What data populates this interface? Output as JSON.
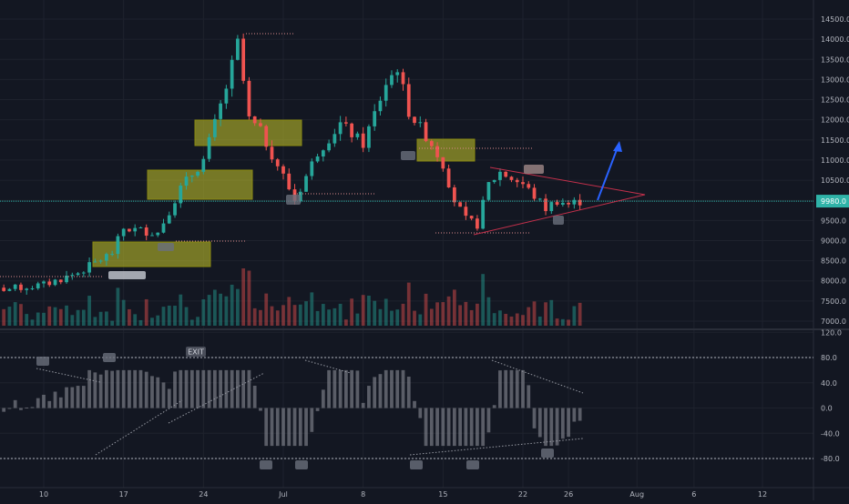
{
  "colors": {
    "background": "#131722",
    "grid": "#1e222d",
    "up": "#26a69a",
    "down": "#ef5350",
    "axis_text": "#b2b5be",
    "price_line": "#2fb3a8",
    "zone": "#c8c829",
    "zone_border": "#8a8a10",
    "forecast": "#2962ff",
    "triangle": "#c2304b",
    "oscillator": "#9598a1"
  },
  "price_axis": {
    "labels": [
      "14500.0",
      "14000.0",
      "13500.0",
      "13000.0",
      "12500.0",
      "12000.0",
      "11500.0",
      "11000.0",
      "10500.0",
      "10000.0",
      "9980.0",
      "9500.0",
      "9000.0",
      "8500.0",
      "8000.0",
      "7500.0",
      "7000.0"
    ],
    "current_price": "9980.0",
    "current_price_value": 9980
  },
  "oscillator_axis": {
    "labels": [
      "120.0",
      "80.0",
      "40.0",
      "0.0",
      "-40.0",
      "-80.0"
    ]
  },
  "time_axis": {
    "labels": [
      "10",
      "17",
      "24",
      "Jul",
      "8",
      "15",
      "22",
      "26",
      "Aug",
      "6",
      "12"
    ]
  },
  "annotations": {
    "exit_label": "EXIT"
  },
  "chart_data": {
    "type": "candlestick",
    "symbol": "",
    "y_range": [
      6850,
      14700
    ],
    "oscillator_range": [
      -100,
      120
    ],
    "oscillator_levels": [
      80,
      -80
    ],
    "x_ticks": [
      "10",
      "17",
      "24",
      "Jul",
      "8",
      "15",
      "22",
      "26",
      "Aug",
      "6",
      "12"
    ],
    "supply_demand_zones": [
      {
        "from": "Jun 13",
        "to": "Jun 25",
        "low": 8350,
        "high": 8950
      },
      {
        "from": "Jun 19",
        "to": "Jun 26",
        "low": 10000,
        "high": 10750
      },
      {
        "from": "Jun 23",
        "to": "Jul 1",
        "low": 11350,
        "high": 11950
      },
      {
        "from": "Jul 14",
        "to": "Jul 18",
        "low": 10950,
        "high": 11500
      }
    ],
    "triangle": {
      "upper": [
        [
          "Jul 20",
          10900
        ],
        [
          "Jul 29",
          10150
        ]
      ],
      "lower": [
        [
          "Jul 18",
          9100
        ],
        [
          "Jul 29",
          10150
        ]
      ]
    },
    "forecast_arrow": [
      [
        "Jul 27",
        10000
      ],
      [
        "Jul 31",
        11400
      ]
    ],
    "series_close_approx": [
      {
        "date": "Jun 7",
        "close": 7800
      },
      {
        "date": "Jun 10",
        "close": 7900
      },
      {
        "date": "Jun 13",
        "close": 8200
      },
      {
        "date": "Jun 16",
        "close": 8700
      },
      {
        "date": "Jun 17",
        "close": 9300
      },
      {
        "date": "Jun 20",
        "close": 9200
      },
      {
        "date": "Jun 22",
        "close": 10300
      },
      {
        "date": "Jun 24",
        "close": 11000
      },
      {
        "date": "Jun 26",
        "close": 12800
      },
      {
        "date": "Jun 27",
        "close": 13900
      },
      {
        "date": "Jun 28",
        "close": 12000
      },
      {
        "date": "Jun 29",
        "close": 11700
      },
      {
        "date": "Jul 1",
        "close": 10600
      },
      {
        "date": "Jul 2",
        "close": 10000
      },
      {
        "date": "Jul 4",
        "close": 11200
      },
      {
        "date": "Jul 6",
        "close": 11900
      },
      {
        "date": "Jul 8",
        "close": 11400
      },
      {
        "date": "Jul 10",
        "close": 12900
      },
      {
        "date": "Jul 11",
        "close": 13300
      },
      {
        "date": "Jul 12",
        "close": 12200
      },
      {
        "date": "Jul 14",
        "close": 11400
      },
      {
        "date": "Jul 15",
        "close": 10900
      },
      {
        "date": "Jul 16",
        "close": 10000
      },
      {
        "date": "Jul 17",
        "close": 9500
      },
      {
        "date": "Jul 18",
        "close": 9400
      },
      {
        "date": "Jul 19",
        "close": 10400
      },
      {
        "date": "Jul 20",
        "close": 10700
      },
      {
        "date": "Jul 22",
        "close": 10400
      },
      {
        "date": "Jul 23",
        "close": 10100
      },
      {
        "date": "Jul 24",
        "close": 9800
      },
      {
        "date": "Jul 25",
        "close": 10000
      },
      {
        "date": "Jul 26",
        "close": 9900
      },
      {
        "date": "Jul 27",
        "close": 9980
      }
    ]
  }
}
